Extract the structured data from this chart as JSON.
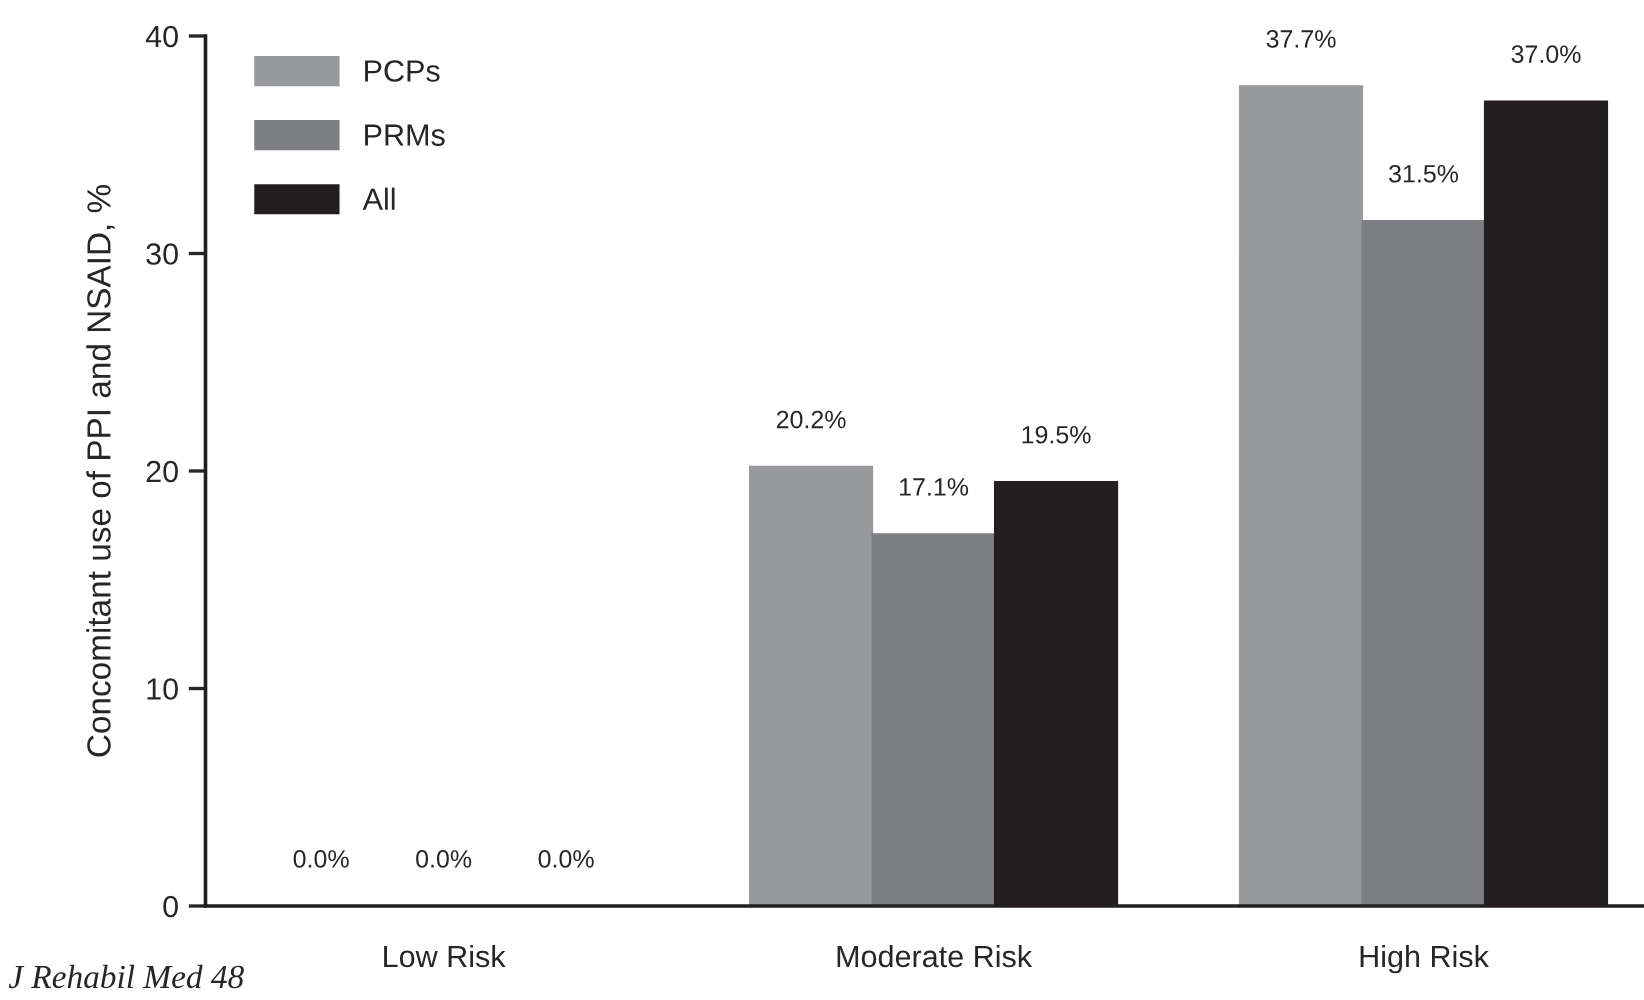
{
  "chart_data": {
    "type": "bar",
    "ylabel": "Concomitant use of PPI and NSAID, %",
    "categories": [
      "Low Risk",
      "Moderate Risk",
      "High Risk"
    ],
    "series": [
      {
        "name": "PCPs",
        "color": "#97999c",
        "values": [
          0.0,
          20.2,
          37.7
        ],
        "value_labels": [
          "0.0%",
          "20.2%",
          "37.7%"
        ]
      },
      {
        "name": "PRMs",
        "color": "#7d7e82",
        "values": [
          0.0,
          17.1,
          31.5
        ],
        "value_labels": [
          "0.0%",
          "17.1%",
          "31.5%"
        ]
      },
      {
        "name": "All",
        "color": "#231f20",
        "values": [
          0.0,
          19.5,
          37.0
        ],
        "value_labels": [
          "0.0%",
          "19.5%",
          "37.0%"
        ]
      }
    ],
    "ylim": [
      0,
      40
    ],
    "yticks": [
      0,
      10,
      20,
      30,
      40
    ],
    "grid": false,
    "legend": "top left",
    "annotations": [
      "J Rehabil Med 48"
    ]
  }
}
